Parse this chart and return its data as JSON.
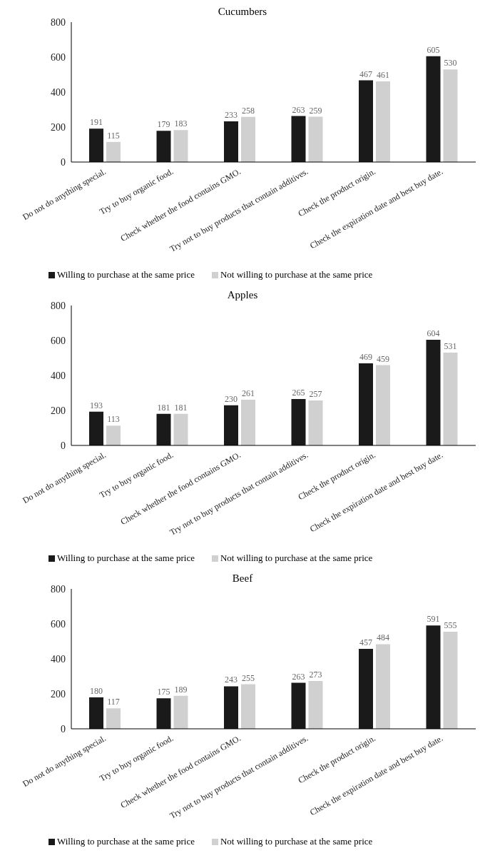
{
  "chart_data": [
    {
      "type": "bar",
      "title": "Cucumbers",
      "categories": [
        "Do not do anything special.",
        "Try to buy organic food.",
        "Check whether the food contains GMO.",
        "Try not to buy products that contain additives.",
        "Check the product origin.",
        "Check the expiration date and best buy date."
      ],
      "series": [
        {
          "name": "Willing to purchase at the same price",
          "color": "#1a1a1a",
          "values": [
            191,
            179,
            233,
            263,
            467,
            605
          ]
        },
        {
          "name": "Not willing to purchase at the same price",
          "color": "#d0d0d0",
          "values": [
            115,
            183,
            258,
            259,
            461,
            530
          ]
        }
      ],
      "ylim": [
        0,
        800
      ],
      "yticks": [
        0,
        200,
        400,
        600,
        800
      ],
      "data_labels": true,
      "legend": "bottom"
    },
    {
      "type": "bar",
      "title": "Apples",
      "categories": [
        "Do not do anything special.",
        "Try to buy organic food.",
        "Check whether the food contains GMO.",
        "Try not to buy products that contain additives.",
        "Check the product origin.",
        "Check the expiration date and best buy date."
      ],
      "series": [
        {
          "name": "Willing to purchase at the same price",
          "color": "#1a1a1a",
          "values": [
            193,
            181,
            230,
            265,
            469,
            604
          ]
        },
        {
          "name": "Not willing to purchase at the same price",
          "color": "#d0d0d0",
          "values": [
            113,
            181,
            261,
            257,
            459,
            531
          ]
        }
      ],
      "ylim": [
        0,
        800
      ],
      "yticks": [
        0,
        200,
        400,
        600,
        800
      ],
      "data_labels": true,
      "legend": "bottom"
    },
    {
      "type": "bar",
      "title": "Beef",
      "categories": [
        "Do not do anything special.",
        "Try to buy organic food.",
        "Check whether the food contains GMO.",
        "Try not to buy products that contain additives.",
        "Check the product origin.",
        "Check the expiration date and best buy date."
      ],
      "series": [
        {
          "name": "Willing to purchase at the same price",
          "color": "#1a1a1a",
          "values": [
            180,
            175,
            243,
            263,
            457,
            591
          ]
        },
        {
          "name": "Not willing to purchase at the same price",
          "color": "#d0d0d0",
          "values": [
            117,
            189,
            255,
            273,
            484,
            555
          ]
        }
      ],
      "ylim": [
        0,
        800
      ],
      "yticks": [
        0,
        200,
        400,
        600,
        800
      ],
      "data_labels": true,
      "legend": "bottom"
    }
  ]
}
